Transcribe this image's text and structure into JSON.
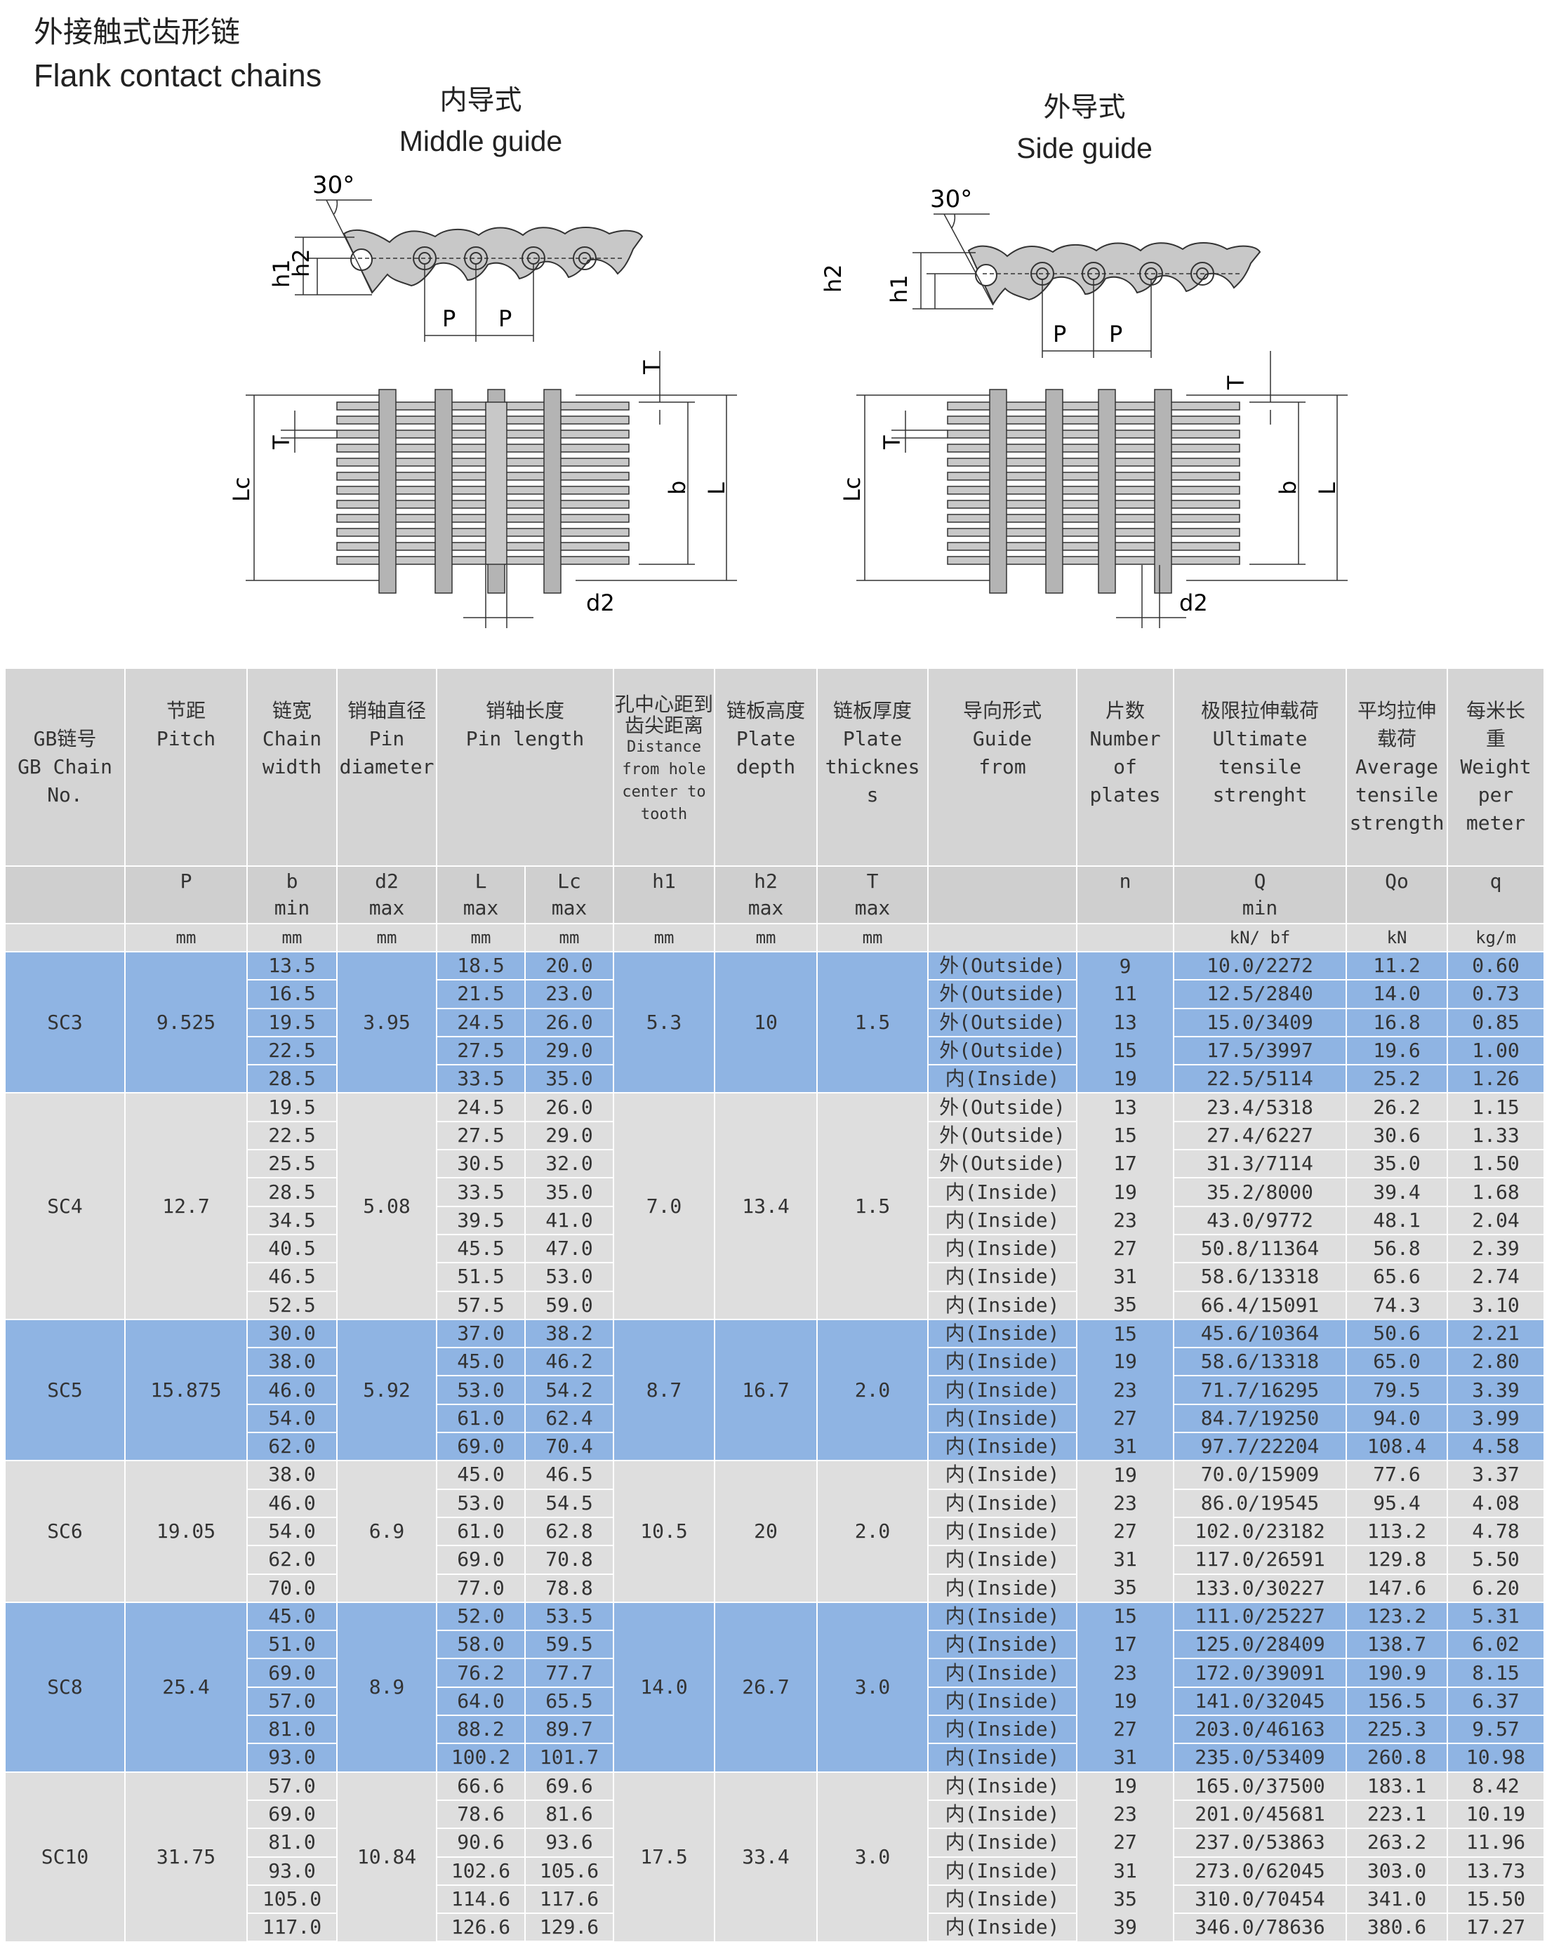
{
  "header": {
    "title_cn": "外接触式齿形链",
    "title_en": "Flank contact chains"
  },
  "figures": {
    "middle": {
      "cn": "内导式",
      "en": "Middle guide"
    },
    "side": {
      "cn": "外导式",
      "en": "Side guide"
    },
    "labels": {
      "angle": "30°",
      "h1": "h1",
      "h2": "h2",
      "p": "P",
      "t": "T",
      "lc": "Lc",
      "b": "b",
      "l": "L",
      "d2": "d2"
    }
  },
  "table": {
    "headers": {
      "gb_cn": "GB链号",
      "gb_en1": "GB Chain",
      "gb_en2": "No.",
      "pitch_cn": "节距",
      "pitch_en": "Pitch",
      "width_cn": "链宽",
      "width_en1": "Chain",
      "width_en2": "width",
      "pin_cn": "销轴直径",
      "pin_en1": "Pin",
      "pin_en2": "diameter",
      "pinlen_cn": "销轴长度",
      "pinlen_en": "Pin length",
      "dist_cn1": "孔中心距到",
      "dist_cn2": "齿尖距离",
      "dist_en1": "Distance",
      "dist_en2": "from hole",
      "dist_en3": "center to",
      "dist_en4": "tooth",
      "depth_cn": "链板高度",
      "depth_en1": "Plate",
      "depth_en2": "depth",
      "thick_cn": "链板厚度",
      "thick_en1": "Plate",
      "thick_en2": "thicknes",
      "thick_en3": "s",
      "guide_cn": "导向形式",
      "guide_en1": "Guide",
      "guide_en2": "from",
      "num_cn": "片数",
      "num_en1": "Number",
      "num_en2": "of",
      "num_en3": "plates",
      "ult_cn": "极限拉伸载荷",
      "ult_en1": "Ultimate",
      "ult_en2": "tensile",
      "ult_en3": "strenght",
      "avg_cn1": "平均拉伸",
      "avg_cn2": "载荷",
      "avg_en1": "Average",
      "avg_en2": "tensile",
      "avg_en3": "strength",
      "wt_cn1": "每米长",
      "wt_cn2": "重",
      "wt_en1": "Weight",
      "wt_en2": "per",
      "wt_en3": "meter"
    },
    "symbols": {
      "p": "P",
      "b": "b",
      "b_sub": "min",
      "d2": "d2",
      "d2_sub": "max",
      "l": "L",
      "l_sub": "max",
      "lc": "Lc",
      "lc_sub": "max",
      "h1": "h1",
      "h2": "h2",
      "h2_sub": "max",
      "t": "T",
      "t_sub": "max",
      "n": "n",
      "q": "Q",
      "q_sub": "min",
      "qo": "Qo",
      "qq": "q"
    },
    "units": {
      "p": "mm",
      "b": "mm",
      "d2": "mm",
      "l": "mm",
      "lc": "mm",
      "h1": "mm",
      "h2": "mm",
      "t": "mm",
      "q": "kN/ bf",
      "qo": "kN",
      "qq": "kg/m"
    },
    "groups": [
      {
        "no": "SC3",
        "pitch": "9.525",
        "pin": "3.95",
        "h1": "5.3",
        "h2": "10",
        "t": "1.5",
        "color": "blue",
        "rows": [
          {
            "b": "13.5",
            "l": "18.5",
            "lc": "20.0",
            "guide": "外(Outside)",
            "n": "9",
            "q": "10.0/2272",
            "qo": "11.2",
            "w": "0.60"
          },
          {
            "b": "16.5",
            "l": "21.5",
            "lc": "23.0",
            "guide": "外(Outside)",
            "n": "11",
            "q": "12.5/2840",
            "qo": "14.0",
            "w": "0.73"
          },
          {
            "b": "19.5",
            "l": "24.5",
            "lc": "26.0",
            "guide": "外(Outside)",
            "n": "13",
            "q": "15.0/3409",
            "qo": "16.8",
            "w": "0.85"
          },
          {
            "b": "22.5",
            "l": "27.5",
            "lc": "29.0",
            "guide": "外(Outside)",
            "n": "15",
            "q": "17.5/3997",
            "qo": "19.6",
            "w": "1.00"
          },
          {
            "b": "28.5",
            "l": "33.5",
            "lc": "35.0",
            "guide": "内(Inside)",
            "n": "19",
            "q": "22.5/5114",
            "qo": "25.2",
            "w": "1.26"
          }
        ]
      },
      {
        "no": "SC4",
        "pitch": "12.7",
        "pin": "5.08",
        "h1": "7.0",
        "h2": "13.4",
        "t": "1.5",
        "color": "gray",
        "rows": [
          {
            "b": "19.5",
            "l": "24.5",
            "lc": "26.0",
            "guide": "外(Outside)",
            "n": "13",
            "q": "23.4/5318",
            "qo": "26.2",
            "w": "1.15"
          },
          {
            "b": "22.5",
            "l": "27.5",
            "lc": "29.0",
            "guide": "外(Outside)",
            "n": "15",
            "q": "27.4/6227",
            "qo": "30.6",
            "w": "1.33"
          },
          {
            "b": "25.5",
            "l": "30.5",
            "lc": "32.0",
            "guide": "外(Outside)",
            "n": "17",
            "q": "31.3/7114",
            "qo": "35.0",
            "w": "1.50"
          },
          {
            "b": "28.5",
            "l": "33.5",
            "lc": "35.0",
            "guide": "内(Inside)",
            "n": "19",
            "q": "35.2/8000",
            "qo": "39.4",
            "w": "1.68"
          },
          {
            "b": "34.5",
            "l": "39.5",
            "lc": "41.0",
            "guide": "内(Inside)",
            "n": "23",
            "q": "43.0/9772",
            "qo": "48.1",
            "w": "2.04"
          },
          {
            "b": "40.5",
            "l": "45.5",
            "lc": "47.0",
            "guide": "内(Inside)",
            "n": "27",
            "q": "50.8/11364",
            "qo": "56.8",
            "w": "2.39"
          },
          {
            "b": "46.5",
            "l": "51.5",
            "lc": "53.0",
            "guide": "内(Inside)",
            "n": "31",
            "q": "58.6/13318",
            "qo": "65.6",
            "w": "2.74"
          },
          {
            "b": "52.5",
            "l": "57.5",
            "lc": "59.0",
            "guide": "内(Inside)",
            "n": "35",
            "q": "66.4/15091",
            "qo": "74.3",
            "w": "3.10"
          }
        ]
      },
      {
        "no": "SC5",
        "pitch": "15.875",
        "pin": "5.92",
        "h1": "8.7",
        "h2": "16.7",
        "t": "2.0",
        "color": "blue",
        "rows": [
          {
            "b": "30.0",
            "l": "37.0",
            "lc": "38.2",
            "guide": "内(Inside)",
            "n": "15",
            "q": "45.6/10364",
            "qo": "50.6",
            "w": "2.21"
          },
          {
            "b": "38.0",
            "l": "45.0",
            "lc": "46.2",
            "guide": "内(Inside)",
            "n": "19",
            "q": "58.6/13318",
            "qo": "65.0",
            "w": "2.80"
          },
          {
            "b": "46.0",
            "l": "53.0",
            "lc": "54.2",
            "guide": "内(Inside)",
            "n": "23",
            "q": "71.7/16295",
            "qo": "79.5",
            "w": "3.39"
          },
          {
            "b": "54.0",
            "l": "61.0",
            "lc": "62.4",
            "guide": "内(Inside)",
            "n": "27",
            "q": "84.7/19250",
            "qo": "94.0",
            "w": "3.99"
          },
          {
            "b": "62.0",
            "l": "69.0",
            "lc": "70.4",
            "guide": "内(Inside)",
            "n": "31",
            "q": "97.7/22204",
            "qo": "108.4",
            "w": "4.58"
          }
        ]
      },
      {
        "no": "SC6",
        "pitch": "19.05",
        "pin": "6.9",
        "h1": "10.5",
        "h2": "20",
        "t": "2.0",
        "color": "gray",
        "rows": [
          {
            "b": "38.0",
            "l": "45.0",
            "lc": "46.5",
            "guide": "内(Inside)",
            "n": "19",
            "q": "70.0/15909",
            "qo": "77.6",
            "w": "3.37"
          },
          {
            "b": "46.0",
            "l": "53.0",
            "lc": "54.5",
            "guide": "内(Inside)",
            "n": "23",
            "q": "86.0/19545",
            "qo": "95.4",
            "w": "4.08"
          },
          {
            "b": "54.0",
            "l": "61.0",
            "lc": "62.8",
            "guide": "内(Inside)",
            "n": "27",
            "q": "102.0/23182",
            "qo": "113.2",
            "w": "4.78"
          },
          {
            "b": "62.0",
            "l": "69.0",
            "lc": "70.8",
            "guide": "内(Inside)",
            "n": "31",
            "q": "117.0/26591",
            "qo": "129.8",
            "w": "5.50"
          },
          {
            "b": "70.0",
            "l": "77.0",
            "lc": "78.8",
            "guide": "内(Inside)",
            "n": "35",
            "q": "133.0/30227",
            "qo": "147.6",
            "w": "6.20"
          }
        ]
      },
      {
        "no": "SC8",
        "pitch": "25.4",
        "pin": "8.9",
        "h1": "14.0",
        "h2": "26.7",
        "t": "3.0",
        "color": "blue",
        "rows": [
          {
            "b": "45.0",
            "l": "52.0",
            "lc": "53.5",
            "guide": "内(Inside)",
            "n": "15",
            "q": "111.0/25227",
            "qo": "123.2",
            "w": "5.31"
          },
          {
            "b": "51.0",
            "l": "58.0",
            "lc": "59.5",
            "guide": "内(Inside)",
            "n": "17",
            "q": "125.0/28409",
            "qo": "138.7",
            "w": "6.02"
          },
          {
            "b": "69.0",
            "l": "76.2",
            "lc": "77.7",
            "guide": "内(Inside)",
            "n": "23",
            "q": "172.0/39091",
            "qo": "190.9",
            "w": "8.15"
          },
          {
            "b": "57.0",
            "l": "64.0",
            "lc": "65.5",
            "guide": "内(Inside)",
            "n": "19",
            "q": "141.0/32045",
            "qo": "156.5",
            "w": "6.37"
          },
          {
            "b": "81.0",
            "l": "88.2",
            "lc": "89.7",
            "guide": "内(Inside)",
            "n": "27",
            "q": "203.0/46163",
            "qo": "225.3",
            "w": "9.57"
          },
          {
            "b": "93.0",
            "l": "100.2",
            "lc": "101.7",
            "guide": "内(Inside)",
            "n": "31",
            "q": "235.0/53409",
            "qo": "260.8",
            "w": "10.98"
          }
        ]
      },
      {
        "no": "SC10",
        "pitch": "31.75",
        "pin": "10.84",
        "h1": "17.5",
        "h2": "33.4",
        "t": "3.0",
        "color": "gray",
        "rows": [
          {
            "b": "57.0",
            "l": "66.6",
            "lc": "69.6",
            "guide": "内(Inside)",
            "n": "19",
            "q": "165.0/37500",
            "qo": "183.1",
            "w": "8.42"
          },
          {
            "b": "69.0",
            "l": "78.6",
            "lc": "81.6",
            "guide": "内(Inside)",
            "n": "23",
            "q": "201.0/45681",
            "qo": "223.1",
            "w": "10.19"
          },
          {
            "b": "81.0",
            "l": "90.6",
            "lc": "93.6",
            "guide": "内(Inside)",
            "n": "27",
            "q": "237.0/53863",
            "qo": "263.2",
            "w": "11.96"
          },
          {
            "b": "93.0",
            "l": "102.6",
            "lc": "105.6",
            "guide": "内(Inside)",
            "n": "31",
            "q": "273.0/62045",
            "qo": "303.0",
            "w": "13.73"
          },
          {
            "b": "105.0",
            "l": "114.6",
            "lc": "117.6",
            "guide": "内(Inside)",
            "n": "35",
            "q": "310.0/70454",
            "qo": "341.0",
            "w": "15.50"
          },
          {
            "b": "117.0",
            "l": "126.6",
            "lc": "129.6",
            "guide": "内(Inside)",
            "n": "39",
            "q": "346.0/78636",
            "qo": "380.6",
            "w": "17.27"
          }
        ]
      }
    ]
  }
}
